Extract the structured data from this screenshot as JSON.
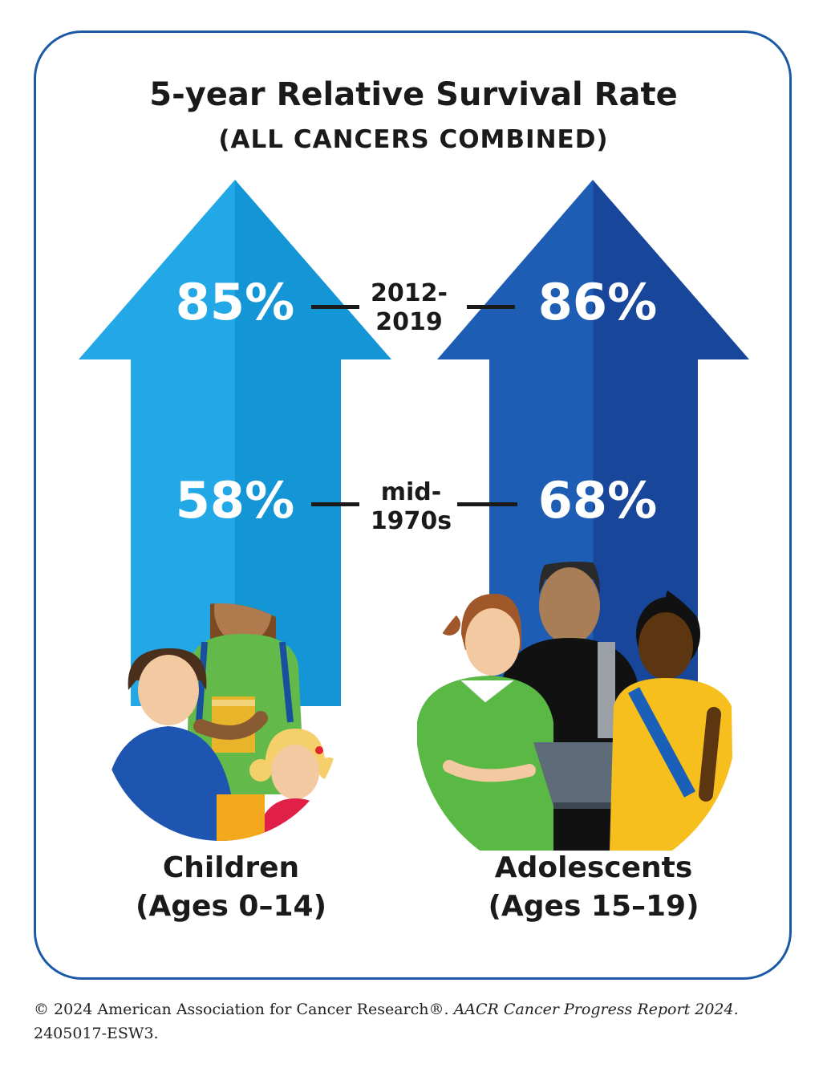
{
  "title": "5-year Relative Survival Rate",
  "subtitle": "(ALL CANCERS COMBINED)",
  "periods": {
    "recent_line1": "2012-",
    "recent_line2": "2019",
    "early_line1": "mid-",
    "early_line2": "1970s"
  },
  "groups": [
    {
      "name": "Children",
      "ages": "(Ages 0–14)",
      "early_rate": "58%",
      "recent_rate": "85%",
      "color": "#1a9fe0"
    },
    {
      "name": "Adolescents",
      "ages": "(Ages 15–19)",
      "early_rate": "68%",
      "recent_rate": "86%",
      "color": "#1d4fa3"
    }
  ],
  "footer": {
    "copyright": "© 2024 American Association for Cancer Research®.",
    "report": "AACR Cancer Progress Report 2024.",
    "code": "2405017-ESW3."
  }
}
